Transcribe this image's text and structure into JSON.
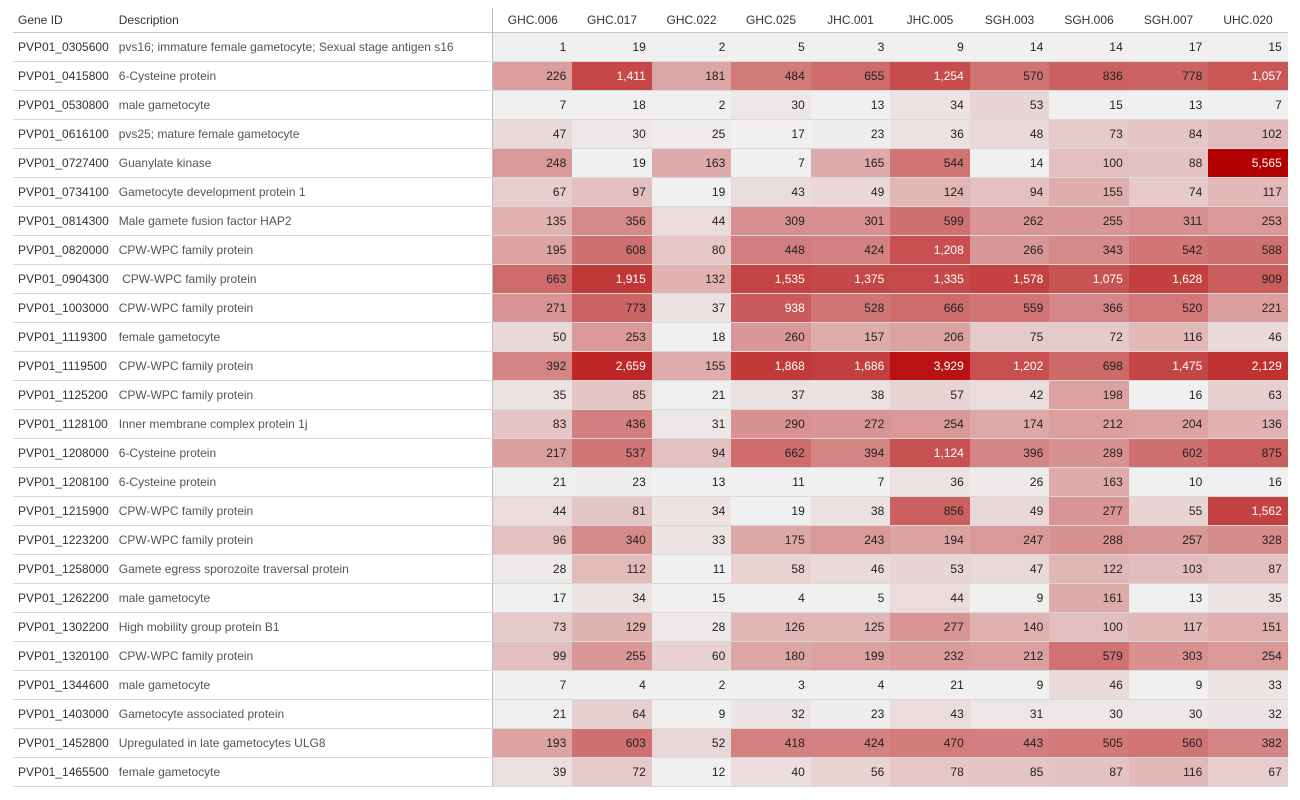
{
  "chart_data": {
    "type": "heatmap",
    "row_headers": [
      "Gene ID",
      "Description"
    ],
    "columns": [
      "GHC.006",
      "GHC.017",
      "GHC.022",
      "GHC.025",
      "JHC.001",
      "JHC.005",
      "SGH.003",
      "SGH.006",
      "SGH.007",
      "UHC.020"
    ],
    "rows": [
      {
        "gene": "PVP01_0305600",
        "desc": "pvs16; immature female gametocyte; Sexual stage antigen s16",
        "values": [
          1,
          19,
          2,
          5,
          3,
          9,
          14,
          14,
          17,
          15
        ]
      },
      {
        "gene": "PVP01_0415800",
        "desc": "6-Cysteine protein",
        "values": [
          226,
          1411,
          181,
          484,
          655,
          1254,
          570,
          836,
          778,
          1057
        ]
      },
      {
        "gene": "PVP01_0530800",
        "desc": "male gametocyte",
        "values": [
          7,
          18,
          2,
          30,
          13,
          34,
          53,
          15,
          13,
          7
        ]
      },
      {
        "gene": "PVP01_0616100",
        "desc": "pvs25; mature female gametocyte",
        "values": [
          47,
          30,
          25,
          17,
          23,
          36,
          48,
          73,
          84,
          102
        ]
      },
      {
        "gene": "PVP01_0727400",
        "desc": "Guanylate kinase",
        "values": [
          248,
          19,
          163,
          7,
          165,
          544,
          14,
          100,
          88,
          5565
        ]
      },
      {
        "gene": "PVP01_0734100",
        "desc": "Gametocyte development protein 1",
        "values": [
          67,
          97,
          19,
          43,
          49,
          124,
          94,
          155,
          74,
          117
        ]
      },
      {
        "gene": "PVP01_0814300",
        "desc": "Male gamete fusion factor HAP2",
        "values": [
          135,
          356,
          44,
          309,
          301,
          599,
          262,
          255,
          311,
          253
        ]
      },
      {
        "gene": "PVP01_0820000",
        "desc": "CPW-WPC family protein",
        "values": [
          195,
          608,
          80,
          448,
          424,
          1208,
          266,
          343,
          542,
          588
        ]
      },
      {
        "gene": "PVP01_0904300",
        "desc": " CPW-WPC family protein",
        "values": [
          663,
          1915,
          132,
          1535,
          1375,
          1335,
          1578,
          1075,
          1628,
          909
        ]
      },
      {
        "gene": "PVP01_1003000",
        "desc": "CPW-WPC family protein",
        "values": [
          271,
          773,
          37,
          938,
          528,
          666,
          559,
          366,
          520,
          221
        ]
      },
      {
        "gene": "PVP01_1119300",
        "desc": "female gametocyte",
        "values": [
          50,
          253,
          18,
          260,
          157,
          206,
          75,
          72,
          116,
          46
        ]
      },
      {
        "gene": "PVP01_1119500",
        "desc": "CPW-WPC family protein",
        "values": [
          392,
          2659,
          155,
          1868,
          1686,
          3929,
          1202,
          698,
          1475,
          2129
        ]
      },
      {
        "gene": "PVP01_1125200",
        "desc": "CPW-WPC family protein",
        "values": [
          35,
          85,
          21,
          37,
          38,
          57,
          42,
          198,
          16,
          63
        ]
      },
      {
        "gene": "PVP01_1128100",
        "desc": "Inner membrane complex protein 1j",
        "values": [
          83,
          436,
          31,
          290,
          272,
          254,
          174,
          212,
          204,
          136
        ]
      },
      {
        "gene": "PVP01_1208000",
        "desc": "6-Cysteine protein",
        "values": [
          217,
          537,
          94,
          662,
          394,
          1124,
          396,
          289,
          602,
          875
        ]
      },
      {
        "gene": "PVP01_1208100",
        "desc": "6-Cysteine protein",
        "values": [
          21,
          23,
          13,
          11,
          7,
          36,
          26,
          163,
          10,
          16
        ]
      },
      {
        "gene": "PVP01_1215900",
        "desc": "CPW-WPC family protein",
        "values": [
          44,
          81,
          34,
          19,
          38,
          856,
          49,
          277,
          55,
          1562
        ]
      },
      {
        "gene": "PVP01_1223200",
        "desc": "CPW-WPC family protein",
        "values": [
          96,
          340,
          33,
          175,
          243,
          194,
          247,
          288,
          257,
          328
        ]
      },
      {
        "gene": "PVP01_1258000",
        "desc": "Gamete egress sporozoite traversal protein",
        "values": [
          28,
          112,
          11,
          58,
          46,
          53,
          47,
          122,
          103,
          87
        ]
      },
      {
        "gene": "PVP01_1262200",
        "desc": "male gametocyte",
        "values": [
          17,
          34,
          15,
          4,
          5,
          44,
          9,
          161,
          13,
          35
        ]
      },
      {
        "gene": "PVP01_1302200",
        "desc": "High mobility group protein B1",
        "values": [
          73,
          129,
          28,
          126,
          125,
          277,
          140,
          100,
          117,
          151
        ]
      },
      {
        "gene": "PVP01_1320100",
        "desc": "CPW-WPC family protein",
        "values": [
          99,
          255,
          60,
          180,
          199,
          232,
          212,
          579,
          303,
          254
        ]
      },
      {
        "gene": "PVP01_1344600",
        "desc": "male gametocyte",
        "values": [
          7,
          4,
          2,
          3,
          4,
          21,
          9,
          46,
          9,
          33
        ]
      },
      {
        "gene": "PVP01_1403000",
        "desc": "Gametocyte associated protein",
        "values": [
          21,
          64,
          9,
          32,
          23,
          43,
          31,
          30,
          30,
          32
        ]
      },
      {
        "gene": "PVP01_1452800",
        "desc": "Upregulated in late gametocytes ULG8",
        "values": [
          193,
          603,
          52,
          418,
          424,
          470,
          443,
          505,
          560,
          382
        ]
      },
      {
        "gene": "PVP01_1465500",
        "desc": "female gametocyte",
        "values": [
          39,
          72,
          12,
          40,
          56,
          78,
          85,
          87,
          116,
          67
        ]
      }
    ],
    "color_scale": {
      "low": "#f0f0f0",
      "high": "#b30000",
      "max_value": 5565
    },
    "grid": true
  }
}
